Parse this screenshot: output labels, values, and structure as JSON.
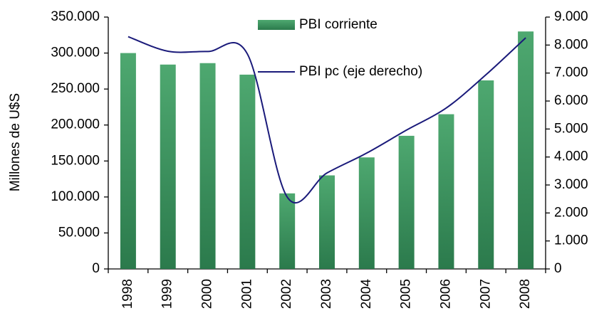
{
  "chart_data": {
    "type": "bar",
    "ylabel": "Millones de U$S",
    "categories": [
      "1998",
      "1999",
      "2000",
      "2001",
      "2002",
      "2003",
      "2004",
      "2005",
      "2006",
      "2007",
      "2008"
    ],
    "series": [
      {
        "name": "PBI corriente",
        "type": "bar",
        "color": "#3a9060",
        "values": [
          300000,
          284000,
          286000,
          270000,
          105000,
          130000,
          155000,
          185000,
          215000,
          262000,
          330000
        ]
      },
      {
        "name": "PBI pc (eje derecho)",
        "type": "line",
        "axis": "y2",
        "color": "#1a1a7a",
        "values": [
          8300,
          7780,
          7770,
          7680,
          2570,
          3430,
          4140,
          4960,
          5750,
          6940,
          8260
        ]
      }
    ],
    "ylim": [
      0,
      350000
    ],
    "yticks": [
      0,
      {
        "value": 50000,
        "label": "50.000"
      },
      {
        "value": 100000,
        "label": "100.000"
      },
      {
        "value": 150000,
        "label": "150.000"
      },
      {
        "value": 200000,
        "label": "200.000"
      },
      {
        "value": 250000,
        "label": "250.000"
      },
      {
        "value": 300000,
        "label": "300.000"
      },
      {
        "value": 350000,
        "label": "350.000"
      }
    ],
    "y2lim": [
      0,
      9000
    ],
    "y2ticks": [
      0,
      {
        "value": 1000,
        "label": "1.000"
      },
      {
        "value": 2000,
        "label": "2.000"
      },
      {
        "value": 3000,
        "label": "3.000"
      },
      {
        "value": 4000,
        "label": "4.000"
      },
      {
        "value": 5000,
        "label": "5.000"
      },
      {
        "value": 6000,
        "label": "6.000"
      },
      {
        "value": 7000,
        "label": "7.000"
      },
      {
        "value": 8000,
        "label": "8.000"
      },
      {
        "value": 9000,
        "label": "9.000"
      }
    ],
    "grid": false
  }
}
